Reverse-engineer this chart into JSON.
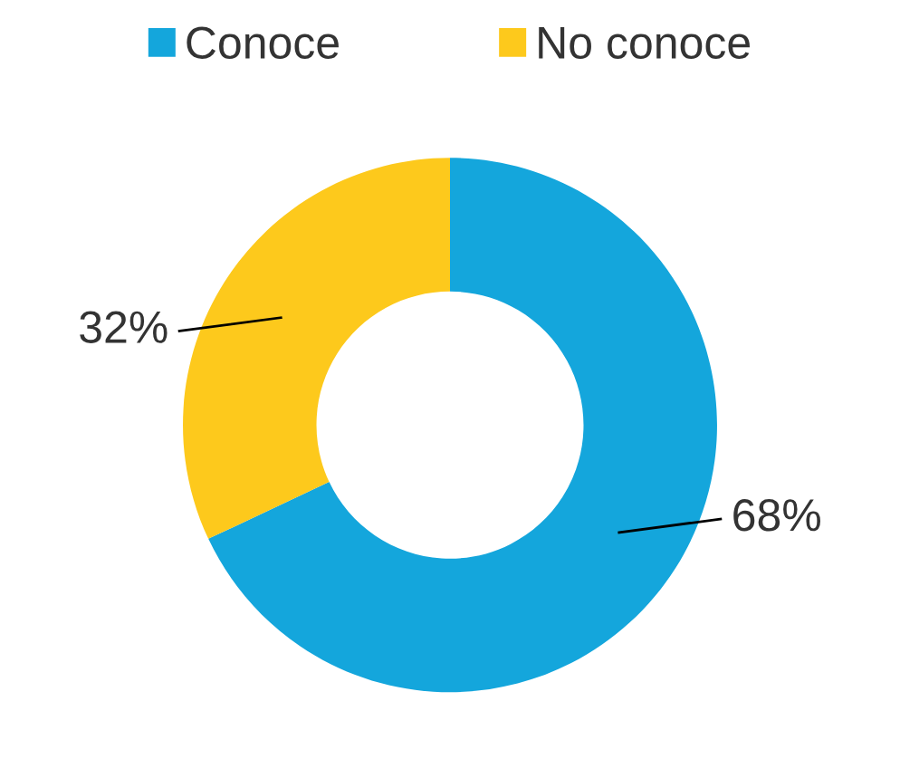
{
  "chart_data": {
    "type": "donut",
    "categories": [
      "Conoce",
      "No conoce"
    ],
    "values": [
      68,
      32
    ],
    "colors": [
      "#14a6dc",
      "#fdc91c"
    ],
    "value_labels": [
      "68%",
      "32%"
    ],
    "legend": "top"
  }
}
